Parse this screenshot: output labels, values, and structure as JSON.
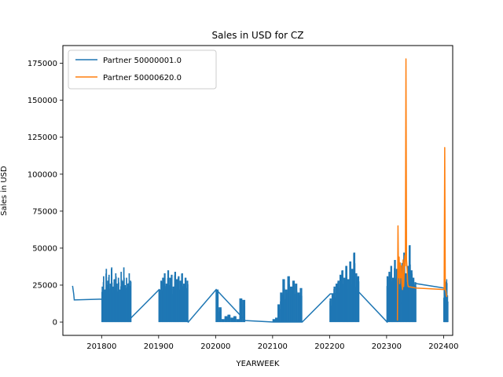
{
  "chart_data": {
    "type": "line",
    "title": "Sales in USD for CZ",
    "xlabel": "YEARWEEK",
    "ylabel": "Sales in USD",
    "xlim": [
      201732,
      202416
    ],
    "ylim": [
      -9000,
      187000
    ],
    "xticks": [
      201800,
      201900,
      202000,
      202100,
      202200,
      202300,
      202400
    ],
    "yticks": [
      0,
      25000,
      50000,
      75000,
      100000,
      125000,
      150000,
      175000
    ],
    "grid": false,
    "legend_position": "top-left",
    "series": [
      {
        "name": "Partner 50000001.0",
        "color": "#1f77b4",
        "clusters": [
          {
            "x_range": [
              201800,
              201852
            ],
            "peaks": [
              24000,
              31000,
              22000,
              36000,
              28000,
              32000,
              26000,
              37000,
              24000,
              29000,
              33000,
              26000,
              30000,
              22000,
              34000,
              28000,
              37000,
              25000,
              30000,
              26000,
              33000,
              28000
            ]
          },
          {
            "x_range": [
              201900,
              201952
            ],
            "peaks": [
              22000,
              28000,
              30000,
              33000,
              26000,
              35000,
              30000,
              32000,
              24000,
              34000,
              29000,
              31000,
              28000,
              33000,
              26000,
              30000,
              28000
            ]
          },
          {
            "x_range": [
              202000,
              202052
            ],
            "peaks": [
              22000,
              10000,
              2000,
              4000,
              5000,
              3000,
              4000,
              2000,
              16000,
              15000
            ]
          },
          {
            "x_range": [
              202100,
              202152
            ],
            "peaks": [
              2000,
              3000,
              12000,
              20000,
              29000,
              22000,
              31000,
              24000,
              28000,
              26000,
              20000,
              23000
            ]
          },
          {
            "x_range": [
              202200,
              202252
            ],
            "peaks": [
              16000,
              19000,
              24000,
              26000,
              28000,
              32000,
              35000,
              30000,
              38000,
              29000,
              41000,
              36000,
              47000,
              33000,
              31000
            ]
          },
          {
            "x_range": [
              202300,
              202352
            ],
            "peaks": [
              31000,
              34000,
              38000,
              30000,
              42000,
              36000,
              32000,
              34000,
              40000,
              47000,
              33000,
              38000,
              52000,
              35000,
              30000,
              27000
            ]
          },
          {
            "x_range": [
              202400,
              202408
            ],
            "peaks": [
              23000,
              30000,
              27000,
              29000,
              18000
            ]
          }
        ],
        "connectors": [
          {
            "x": 201749,
            "y": 24500
          },
          {
            "x": 201751,
            "y": 19000
          },
          {
            "x": 201752,
            "y": 15000
          },
          {
            "x": 201801,
            "y": 15500
          },
          {
            "x": 201852,
            "y": 3000
          },
          {
            "x": 201901,
            "y": 22000
          },
          {
            "x": 201952,
            "y": 0
          },
          {
            "x": 202001,
            "y": 22000
          },
          {
            "x": 202052,
            "y": 1000
          },
          {
            "x": 202101,
            "y": 0
          },
          {
            "x": 202152,
            "y": 0
          },
          {
            "x": 202201,
            "y": 19000
          },
          {
            "x": 202252,
            "y": 20000
          },
          {
            "x": 202301,
            "y": 0
          },
          {
            "x": 202352,
            "y": 26000
          },
          {
            "x": 202401,
            "y": 23000
          }
        ]
      },
      {
        "name": "Partner 50000620.0",
        "color": "#ff7f0e",
        "points": [
          [
            202319,
            1000
          ],
          [
            202320,
            65000
          ],
          [
            202321,
            30000
          ],
          [
            202322,
            44000
          ],
          [
            202323,
            26000
          ],
          [
            202324,
            40000
          ],
          [
            202325,
            30000
          ],
          [
            202326,
            38000
          ],
          [
            202327,
            25000
          ],
          [
            202328,
            22000
          ],
          [
            202329,
            42000
          ],
          [
            202330,
            24000
          ],
          [
            202331,
            36000
          ],
          [
            202332,
            45000
          ],
          [
            202333,
            38000
          ],
          [
            202334,
            178000
          ],
          [
            202335,
            42000
          ],
          [
            202336,
            36000
          ],
          [
            202337,
            26000
          ],
          [
            202338,
            24000
          ],
          [
            202352,
            23000
          ],
          [
            202401,
            22000
          ],
          [
            202402,
            118000
          ],
          [
            202403,
            22000
          ],
          [
            202404,
            21000
          ],
          [
            202405,
            18000
          ],
          [
            202406,
            17000
          ]
        ]
      }
    ]
  }
}
